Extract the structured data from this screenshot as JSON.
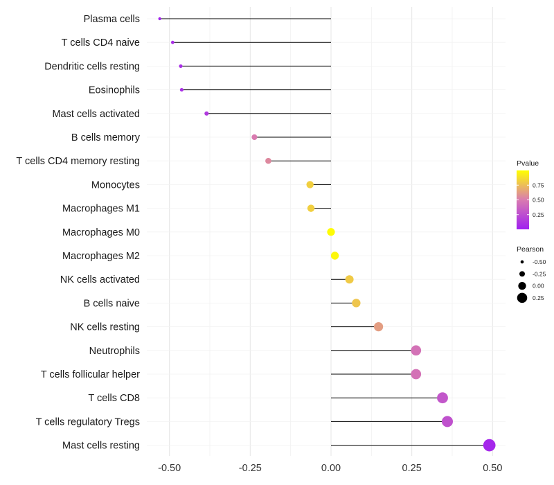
{
  "chart_data": {
    "type": "lollipop",
    "title": "",
    "xlabel": "",
    "ylabel": "",
    "xlim": [
      -0.57,
      0.54
    ],
    "xticks": [
      -0.5,
      -0.25,
      0.0,
      0.25,
      0.5
    ],
    "xtick_labels": [
      "-0.50",
      "-0.25",
      "0.00",
      "0.25",
      "0.50"
    ],
    "grid": true,
    "categories": [
      "Plasma cells",
      "T cells CD4 naive",
      "Dendritic cells resting",
      "Eosinophils",
      "Mast cells activated",
      "B cells memory",
      "T cells CD4 memory resting",
      "Monocytes",
      "Macrophages M1",
      "Macrophages M0",
      "Macrophages M2",
      "NK cells activated",
      "B cells naive",
      "NK cells resting",
      "Neutrophils",
      "T cells follicular helper",
      "T cells CD8",
      "T cells regulatory  Tregs",
      "Mast cells resting"
    ],
    "pearson": [
      -0.53,
      -0.49,
      -0.465,
      -0.462,
      -0.385,
      -0.237,
      -0.194,
      -0.065,
      -0.062,
      0.0,
      0.012,
      0.057,
      0.078,
      0.147,
      0.263,
      0.263,
      0.345,
      0.36,
      0.49
    ],
    "pvalue": [
      0.02,
      0.08,
      0.08,
      0.08,
      0.14,
      0.5,
      0.55,
      0.82,
      0.82,
      0.99,
      0.97,
      0.8,
      0.78,
      0.63,
      0.45,
      0.45,
      0.3,
      0.27,
      0.04
    ],
    "color_legend": {
      "title": "Pvalue",
      "ticks": [
        0.25,
        0.5,
        0.75
      ],
      "tick_labels": [
        "0.25",
        "0.50",
        "0.75"
      ],
      "range": [
        0.0,
        1.0
      ],
      "low_color": "#a020f0",
      "mid_color": "#d97bb0",
      "high_color": "#ffff00"
    },
    "size_legend": {
      "title": "Pearson",
      "values": [
        -0.5,
        -0.25,
        0.0,
        0.25
      ],
      "labels": [
        "-0.50",
        "-0.25",
        "0.00",
        "0.25"
      ]
    }
  }
}
